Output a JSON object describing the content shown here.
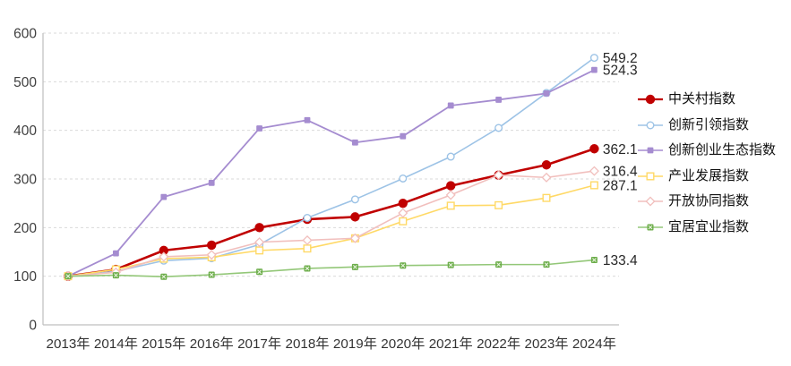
{
  "chart_data": {
    "type": "line",
    "title": "",
    "xlabel": "",
    "ylabel": "",
    "ylim": [
      0,
      600
    ],
    "ytick_step": 100,
    "grid": "horizontal-dashed",
    "legend_position": "right",
    "axis_color": "#BFBFBF",
    "grid_color": "#D9D9D9",
    "tick_label_color": "#404040",
    "end_label_color": "#262626",
    "categories": [
      "2013年",
      "2014年",
      "2015年",
      "2016年",
      "2017年",
      "2018年",
      "2019年",
      "2020年",
      "2021年",
      "2022年",
      "2023年",
      "2024年"
    ],
    "series": [
      {
        "name": "中关村指数",
        "color": "#C00000",
        "marker": "circle-filled",
        "line_width": 2.6,
        "values": [
          100,
          114,
          153,
          164,
          200,
          217,
          222,
          250,
          286,
          308,
          329,
          362.1
        ],
        "end_label": "362.1"
      },
      {
        "name": "创新引领指数",
        "color": "#9DC3E6",
        "marker": "circle-open",
        "line_width": 1.6,
        "values": [
          100,
          110,
          132,
          137,
          165,
          220,
          258,
          301,
          346,
          405,
          477,
          549.2
        ],
        "end_label": "549.2"
      },
      {
        "name": "创新创业生态指数",
        "color": "#A58CD0",
        "marker": "square-filled",
        "line_width": 1.8,
        "values": [
          100,
          147,
          263,
          292,
          404,
          421,
          375,
          388,
          451,
          463,
          476,
          524.3
        ],
        "end_label": "524.3"
      },
      {
        "name": "产业发展指数",
        "color": "#FFD966",
        "marker": "square-open",
        "line_width": 1.6,
        "values": [
          100,
          114,
          136,
          139,
          153,
          157,
          178,
          213,
          245,
          246,
          261,
          287.1
        ],
        "end_label": "287.1"
      },
      {
        "name": "开放协同指数",
        "color": "#F1BFBD",
        "marker": "diamond-open",
        "line_width": 1.6,
        "values": [
          100,
          108,
          140,
          144,
          170,
          174,
          178,
          230,
          267,
          308,
          303,
          316.4
        ],
        "end_label": "316.4"
      },
      {
        "name": "宜居宜业指数",
        "color": "#93C778",
        "marker": "square-x",
        "marker_color": "#6CAD4A",
        "line_width": 1.6,
        "values": [
          100,
          102,
          99,
          103,
          109,
          116,
          119,
          122,
          123,
          124,
          124,
          133.4
        ],
        "end_label": "133.4"
      }
    ]
  }
}
